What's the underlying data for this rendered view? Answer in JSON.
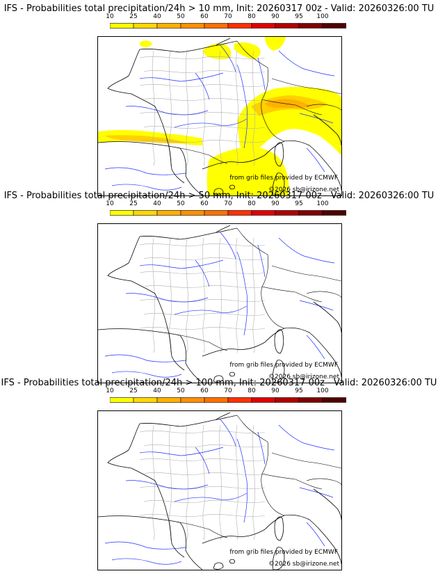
{
  "colorbar": {
    "ticks": [
      "10",
      "25",
      "40",
      "50",
      "60",
      "70",
      "80",
      "90",
      "95",
      "100"
    ],
    "colors": [
      "#ffff00",
      "#ffd700",
      "#ffb000",
      "#ff9000",
      "#ff7000",
      "#ff3000",
      "#e00000",
      "#b00000",
      "#800000",
      "#500000"
    ]
  },
  "colors": {
    "rivers": "#2030ff",
    "borders": "#b0b0b0",
    "coast": "#000000"
  },
  "panels": [
    {
      "title": "IFS - Probabilities total precipitation/24h > 10 mm, Init: 20260317 00z - Valid: 20260326:00 TU",
      "source_credit": "from grib files provided by ECMWF",
      "copyright": "©2026 sb@irizone.net",
      "has_precip": true
    },
    {
      "title": "IFS - Probabilities total precipitation/24h > 50 mm, Init: 20260317 00z - Valid: 20260326:00 TU",
      "source_credit": "from grib files provided by ECMWF",
      "copyright": "©2026 sb@irizone.net",
      "has_precip": false
    },
    {
      "title": "IFS - Probabilities total precipitation/24h > 100 mm, Init: 20260317 00z - Valid: 20260326:00 TU",
      "source_credit": "from grib files provided by ECMWF",
      "copyright": "©2026 sb@irizone.net",
      "has_precip": false
    }
  ]
}
